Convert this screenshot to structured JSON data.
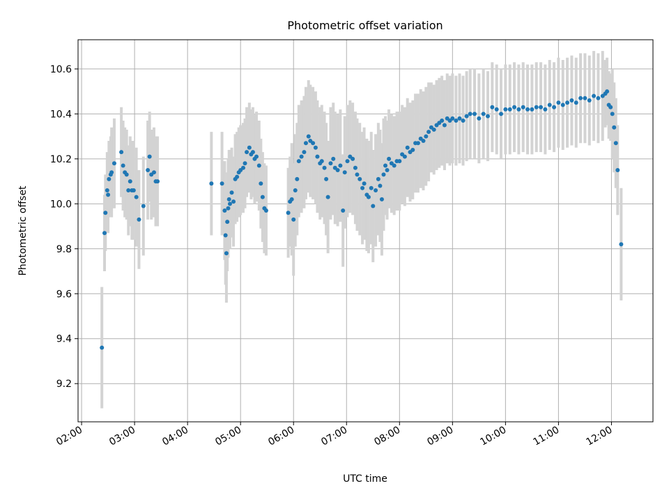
{
  "chart_data": {
    "type": "scatter",
    "title": "Photometric offset variation",
    "xlabel": "UTC time",
    "ylabel": "Photometric offset",
    "xlim": [
      "01:56",
      "12:47"
    ],
    "ylim": [
      9.03,
      10.73
    ],
    "grid": true,
    "x_ticks": [
      "02:00",
      "03:00",
      "04:00",
      "05:00",
      "06:00",
      "07:00",
      "08:00",
      "09:00",
      "10:00",
      "11:00",
      "12:00"
    ],
    "y_ticks": [
      9.2,
      9.4,
      9.6,
      9.8,
      10.0,
      10.2,
      10.4,
      10.6
    ],
    "y_tick_labels": [
      "9.2",
      "9.4",
      "9.6",
      "9.8",
      "10.0",
      "10.2",
      "10.4",
      "10.6"
    ],
    "colors": {
      "points": "#1f77b4",
      "error_bars": "#d3d3d3",
      "grid": "#b0b0b0"
    },
    "series": [
      {
        "style": "points with vertical error bars",
        "points": [
          [
            "02:23",
            9.36,
            0.27
          ],
          [
            "02:26",
            9.87,
            0.17
          ],
          [
            "02:27",
            9.96,
            0.17
          ],
          [
            "02:29",
            10.06,
            0.17
          ],
          [
            "02:30",
            10.04,
            0.17
          ],
          [
            "02:31",
            10.11,
            0.17
          ],
          [
            "02:33",
            10.13,
            0.17
          ],
          [
            "02:34",
            10.14,
            0.2
          ],
          [
            "02:37",
            10.18,
            0.2
          ],
          [
            "02:45",
            10.23,
            0.2
          ],
          [
            "02:47",
            10.17,
            0.2
          ],
          [
            "02:49",
            10.14,
            0.2
          ],
          [
            "02:51",
            10.13,
            0.2
          ],
          [
            "02:53",
            10.06,
            0.2
          ],
          [
            "02:55",
            10.1,
            0.2
          ],
          [
            "02:57",
            10.06,
            0.22
          ],
          [
            "02:59",
            10.06,
            0.22
          ],
          [
            "03:02",
            10.03,
            0.22
          ],
          [
            "03:05",
            9.93,
            0.22
          ],
          [
            "03:10",
            9.99,
            0.22
          ],
          [
            "03:15",
            10.15,
            0.22
          ],
          [
            "03:17",
            10.21,
            0.2
          ],
          [
            "03:19",
            10.13,
            0.2
          ],
          [
            "03:22",
            10.14,
            0.2
          ],
          [
            "03:24",
            10.1,
            0.2
          ],
          [
            "03:26",
            10.1,
            0.2
          ],
          [
            "04:27",
            10.09,
            0.23
          ],
          [
            "04:39",
            10.09,
            0.23
          ],
          [
            "04:42",
            9.97,
            0.22
          ],
          [
            "04:43",
            9.86,
            0.22
          ],
          [
            "04:44",
            9.78,
            0.22
          ],
          [
            "04:45",
            9.92,
            0.22
          ],
          [
            "04:46",
            9.98,
            0.22
          ],
          [
            "04:47",
            10.02,
            0.22
          ],
          [
            "04:48",
            10.0,
            0.2
          ],
          [
            "04:50",
            10.05,
            0.2
          ],
          [
            "04:52",
            10.01,
            0.2
          ],
          [
            "04:54",
            10.11,
            0.2
          ],
          [
            "04:56",
            10.12,
            0.2
          ],
          [
            "04:58",
            10.14,
            0.2
          ],
          [
            "05:00",
            10.15,
            0.2
          ],
          [
            "05:03",
            10.16,
            0.2
          ],
          [
            "05:05",
            10.18,
            0.2
          ],
          [
            "05:07",
            10.23,
            0.2
          ],
          [
            "05:10",
            10.25,
            0.2
          ],
          [
            "05:12",
            10.22,
            0.2
          ],
          [
            "05:14",
            10.23,
            0.2
          ],
          [
            "05:16",
            10.2,
            0.2
          ],
          [
            "05:18",
            10.21,
            0.2
          ],
          [
            "05:21",
            10.17,
            0.2
          ],
          [
            "05:23",
            10.09,
            0.2
          ],
          [
            "05:25",
            10.03,
            0.2
          ],
          [
            "05:27",
            9.98,
            0.2
          ],
          [
            "05:29",
            9.97,
            0.2
          ],
          [
            "05:54",
            9.96,
            0.2
          ],
          [
            "05:56",
            10.01,
            0.2
          ],
          [
            "05:58",
            10.02,
            0.25
          ],
          [
            "06:00",
            9.93,
            0.25
          ],
          [
            "06:02",
            10.06,
            0.25
          ],
          [
            "06:04",
            10.11,
            0.25
          ],
          [
            "06:06",
            10.19,
            0.25
          ],
          [
            "06:09",
            10.21,
            0.25
          ],
          [
            "06:12",
            10.23,
            0.25
          ],
          [
            "06:14",
            10.27,
            0.25
          ],
          [
            "06:17",
            10.3,
            0.25
          ],
          [
            "06:19",
            10.28,
            0.25
          ],
          [
            "06:22",
            10.27,
            0.25
          ],
          [
            "06:25",
            10.25,
            0.25
          ],
          [
            "06:27",
            10.21,
            0.25
          ],
          [
            "06:30",
            10.18,
            0.25
          ],
          [
            "06:32",
            10.19,
            0.25
          ],
          [
            "06:35",
            10.16,
            0.25
          ],
          [
            "06:37",
            10.11,
            0.25
          ],
          [
            "06:39",
            10.03,
            0.25
          ],
          [
            "06:42",
            10.18,
            0.25
          ],
          [
            "06:45",
            10.2,
            0.25
          ],
          [
            "06:47",
            10.16,
            0.25
          ],
          [
            "06:50",
            10.15,
            0.25
          ],
          [
            "06:53",
            10.17,
            0.25
          ],
          [
            "06:56",
            9.97,
            0.25
          ],
          [
            "06:58",
            10.14,
            0.25
          ],
          [
            "07:01",
            10.19,
            0.25
          ],
          [
            "07:04",
            10.21,
            0.25
          ],
          [
            "07:07",
            10.2,
            0.25
          ],
          [
            "07:10",
            10.16,
            0.25
          ],
          [
            "07:12",
            10.13,
            0.25
          ],
          [
            "07:15",
            10.11,
            0.25
          ],
          [
            "07:18",
            10.07,
            0.25
          ],
          [
            "07:20",
            10.09,
            0.25
          ],
          [
            "07:23",
            10.04,
            0.25
          ],
          [
            "07:25",
            10.03,
            0.25
          ],
          [
            "07:28",
            10.07,
            0.25
          ],
          [
            "07:30",
            9.99,
            0.25
          ],
          [
            "07:33",
            10.06,
            0.25
          ],
          [
            "07:36",
            10.11,
            0.25
          ],
          [
            "07:38",
            10.08,
            0.25
          ],
          [
            "07:40",
            10.02,
            0.25
          ],
          [
            "07:42",
            10.13,
            0.25
          ],
          [
            "07:44",
            10.17,
            0.22
          ],
          [
            "07:46",
            10.15,
            0.22
          ],
          [
            "07:48",
            10.2,
            0.22
          ],
          [
            "07:51",
            10.18,
            0.22
          ],
          [
            "07:54",
            10.17,
            0.22
          ],
          [
            "07:57",
            10.19,
            0.22
          ],
          [
            "08:00",
            10.19,
            0.22
          ],
          [
            "08:03",
            10.22,
            0.22
          ],
          [
            "08:06",
            10.21,
            0.22
          ],
          [
            "08:09",
            10.25,
            0.22
          ],
          [
            "08:12",
            10.23,
            0.22
          ],
          [
            "08:15",
            10.24,
            0.22
          ],
          [
            "08:18",
            10.27,
            0.22
          ],
          [
            "08:21",
            10.27,
            0.22
          ],
          [
            "08:24",
            10.29,
            0.22
          ],
          [
            "08:27",
            10.28,
            0.22
          ],
          [
            "08:30",
            10.3,
            0.22
          ],
          [
            "08:33",
            10.32,
            0.22
          ],
          [
            "08:36",
            10.34,
            0.2
          ],
          [
            "08:39",
            10.33,
            0.2
          ],
          [
            "08:42",
            10.35,
            0.2
          ],
          [
            "08:45",
            10.36,
            0.2
          ],
          [
            "08:48",
            10.37,
            0.2
          ],
          [
            "08:51",
            10.35,
            0.2
          ],
          [
            "08:54",
            10.38,
            0.2
          ],
          [
            "08:57",
            10.37,
            0.2
          ],
          [
            "09:00",
            10.38,
            0.2
          ],
          [
            "09:04",
            10.37,
            0.2
          ],
          [
            "09:08",
            10.38,
            0.2
          ],
          [
            "09:12",
            10.37,
            0.2
          ],
          [
            "09:16",
            10.39,
            0.2
          ],
          [
            "09:20",
            10.4,
            0.2
          ],
          [
            "09:25",
            10.4,
            0.2
          ],
          [
            "09:30",
            10.38,
            0.2
          ],
          [
            "09:35",
            10.4,
            0.2
          ],
          [
            "09:40",
            10.39,
            0.2
          ],
          [
            "09:45",
            10.43,
            0.2
          ],
          [
            "09:50",
            10.42,
            0.2
          ],
          [
            "09:55",
            10.4,
            0.2
          ],
          [
            "10:00",
            10.42,
            0.2
          ],
          [
            "10:05",
            10.42,
            0.2
          ],
          [
            "10:10",
            10.43,
            0.2
          ],
          [
            "10:15",
            10.42,
            0.2
          ],
          [
            "10:20",
            10.43,
            0.2
          ],
          [
            "10:25",
            10.42,
            0.2
          ],
          [
            "10:30",
            10.42,
            0.2
          ],
          [
            "10:35",
            10.43,
            0.2
          ],
          [
            "10:40",
            10.43,
            0.2
          ],
          [
            "10:45",
            10.42,
            0.2
          ],
          [
            "10:50",
            10.44,
            0.2
          ],
          [
            "10:55",
            10.43,
            0.2
          ],
          [
            "11:00",
            10.45,
            0.2
          ],
          [
            "11:05",
            10.44,
            0.2
          ],
          [
            "11:10",
            10.45,
            0.2
          ],
          [
            "11:15",
            10.46,
            0.2
          ],
          [
            "11:20",
            10.45,
            0.2
          ],
          [
            "11:25",
            10.47,
            0.2
          ],
          [
            "11:30",
            10.47,
            0.2
          ],
          [
            "11:35",
            10.46,
            0.2
          ],
          [
            "11:40",
            10.48,
            0.2
          ],
          [
            "11:45",
            10.47,
            0.2
          ],
          [
            "11:50",
            10.48,
            0.2
          ],
          [
            "11:53",
            10.49,
            0.15
          ],
          [
            "11:55",
            10.5,
            0.15
          ],
          [
            "11:57",
            10.44,
            0.15
          ],
          [
            "11:59",
            10.43,
            0.15
          ],
          [
            "12:01",
            10.4,
            0.2
          ],
          [
            "12:03",
            10.34,
            0.2
          ],
          [
            "12:05",
            10.27,
            0.2
          ],
          [
            "12:07",
            10.15,
            0.2
          ],
          [
            "12:11",
            9.82,
            0.25
          ]
        ]
      }
    ]
  }
}
